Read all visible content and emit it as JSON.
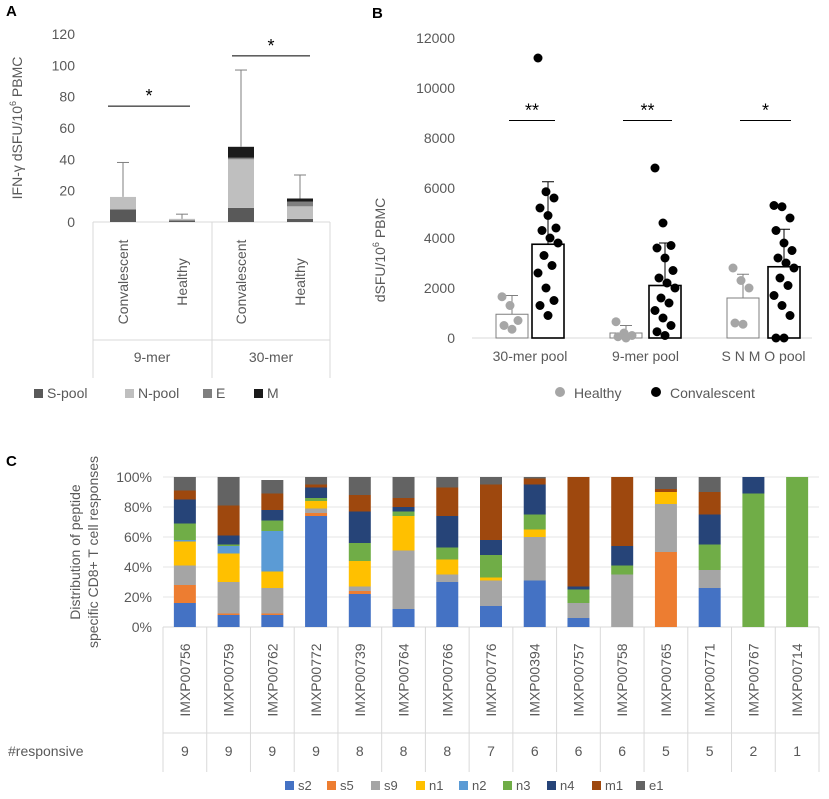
{
  "panels": {
    "A": {
      "label": "A",
      "ylabel_prefix": "IFN-γ dSFU/10",
      "ylabel_sup": "6",
      "ylabel_suffix": " PBMC",
      "groups": [
        "9-mer",
        "30-mer"
      ],
      "legend": [
        "S-pool",
        "N-pool",
        "E",
        "M"
      ]
    },
    "B": {
      "label": "B",
      "ylabel_prefix": "dSFU/10",
      "ylabel_sup": "6",
      "ylabel_suffix": " PBMC",
      "legend": [
        "Healthy",
        "Convalescent"
      ]
    },
    "C": {
      "label": "C",
      "ylabel_line1": "Distribution of peptide",
      "ylabel_line2": "specific CD8+ T cell responses",
      "responsive_label": "#responsive",
      "legend": [
        "s2",
        "s5",
        "s9",
        "n1",
        "n2",
        "n3",
        "n4",
        "m1",
        "e1"
      ]
    }
  },
  "colors": {
    "S-pool": "#595959",
    "N-pool": "#bfbfbf",
    "E": "#7f7f7f",
    "M": "#1a1a1a",
    "healthy": "#a6a6a6",
    "convalescent": "#000000",
    "s2": "#4472c4",
    "s5": "#ed7d31",
    "s9": "#a5a5a5",
    "n1": "#ffc000",
    "n2": "#5b9bd5",
    "n3": "#70ad47",
    "n4": "#264478",
    "m1": "#9e480e",
    "e1": "#636363"
  },
  "chart_data": [
    {
      "panel": "A",
      "type": "bar",
      "stacked": true,
      "ylim": [
        0,
        120
      ],
      "yticks": [
        0,
        20,
        40,
        60,
        80,
        100,
        120
      ],
      "categories": [
        "Convalescent",
        "Healthy",
        "Convalescent",
        "Healthy"
      ],
      "category_groups": [
        "9-mer",
        "9-mer",
        "30-mer",
        "30-mer"
      ],
      "series": [
        {
          "name": "S-pool",
          "values": [
            8,
            1,
            9,
            2
          ]
        },
        {
          "name": "N-pool",
          "values": [
            8,
            1,
            31,
            8
          ]
        },
        {
          "name": "E",
          "values": [
            0,
            0,
            1,
            3
          ]
        },
        {
          "name": "M",
          "values": [
            0,
            0,
            7,
            2
          ]
        }
      ],
      "error_upper": [
        38,
        5,
        97,
        30
      ],
      "significance": [
        {
          "between": [
            "9-mer Convalescent",
            "9-mer Healthy"
          ],
          "label": "*",
          "y": 74
        },
        {
          "between": [
            "30-mer Convalescent",
            "30-mer Healthy"
          ],
          "label": "*",
          "y": 106
        }
      ]
    },
    {
      "panel": "B",
      "type": "bar",
      "ylim": [
        0,
        12000
      ],
      "yticks": [
        0,
        2000,
        4000,
        6000,
        8000,
        10000,
        12000
      ],
      "categories": [
        "30-mer pool",
        "9-mer pool",
        "S N M O pool"
      ],
      "series": [
        {
          "name": "Healthy",
          "values": [
            950,
            200,
            1600
          ],
          "error_upper": [
            1700,
            500,
            2550
          ],
          "points": [
            [
              1650,
              1300,
              700,
              500,
              350
            ],
            [
              650,
              200,
              100,
              50,
              0
            ],
            [
              2800,
              2300,
              2000,
              600,
              550
            ]
          ]
        },
        {
          "name": "Convalescent",
          "values": [
            3750,
            2100,
            2850
          ],
          "error_upper": [
            6250,
            3800,
            4350
          ],
          "points": [
            [
              11200,
              5850,
              5600,
              5200,
              4900,
              4400,
              4300,
              4000,
              3800,
              3300,
              2900,
              2600,
              2000,
              1500,
              1300,
              900
            ],
            [
              6800,
              4600,
              3700,
              3600,
              3200,
              2700,
              2400,
              2200,
              2000,
              1600,
              1400,
              1100,
              800,
              500,
              250,
              100
            ],
            [
              5300,
              5250,
              4800,
              4300,
              3800,
              3500,
              3200,
              3000,
              2800,
              2400,
              2100,
              1700,
              1300,
              900,
              0,
              0
            ]
          ]
        }
      ],
      "significance": [
        {
          "category": "30-mer pool",
          "label": "**",
          "y": 8700
        },
        {
          "category": "9-mer pool",
          "label": "**",
          "y": 8700
        },
        {
          "category": "S N M O pool",
          "label": "*",
          "y": 8700
        }
      ]
    },
    {
      "panel": "C",
      "type": "bar",
      "stacked": true,
      "percent": true,
      "ylim": [
        0,
        100
      ],
      "yticks": [
        "0%",
        "20%",
        "40%",
        "60%",
        "80%",
        "100%"
      ],
      "categories": [
        "IMXP00756",
        "IMXP00759",
        "IMXP00762",
        "IMXP00772",
        "IMXP00739",
        "IMXP00764",
        "IMXP00766",
        "IMXP00776",
        "IMXP00394",
        "IMXP00757",
        "IMXP00758",
        "IMXP00765",
        "IMXP00771",
        "IMXP00767",
        "IMXP00714"
      ],
      "responsive": [
        9,
        9,
        9,
        9,
        8,
        8,
        8,
        7,
        6,
        6,
        6,
        5,
        5,
        2,
        1
      ],
      "series": [
        {
          "name": "s2",
          "values": [
            16,
            8,
            8,
            74,
            22,
            12,
            30,
            14,
            31,
            6,
            0,
            0,
            26,
            0,
            0
          ]
        },
        {
          "name": "s5",
          "values": [
            12,
            1,
            1,
            2,
            2,
            0,
            0,
            0,
            0,
            0,
            0,
            50,
            0,
            0,
            0
          ]
        },
        {
          "name": "s9",
          "values": [
            13,
            21,
            17,
            3,
            3,
            39,
            5,
            17,
            29,
            10,
            35,
            32,
            12,
            0,
            0
          ]
        },
        {
          "name": "n1",
          "values": [
            16,
            19,
            11,
            5,
            17,
            23,
            10,
            2,
            5,
            0,
            0,
            8,
            0,
            0,
            0
          ]
        },
        {
          "name": "n2",
          "values": [
            1,
            5,
            27,
            0,
            0,
            0,
            0,
            0,
            0,
            0,
            0,
            0,
            0,
            0,
            0
          ]
        },
        {
          "name": "n3",
          "values": [
            11,
            1,
            7,
            2,
            12,
            3,
            8,
            15,
            10,
            9,
            6,
            0,
            17,
            89,
            100
          ]
        },
        {
          "name": "n4",
          "values": [
            16,
            6,
            7,
            7,
            21,
            3,
            21,
            10,
            20,
            2,
            13,
            0,
            20,
            11,
            0
          ]
        },
        {
          "name": "m1",
          "values": [
            6,
            20,
            11,
            2,
            11,
            6,
            19,
            37,
            4,
            73,
            46,
            2,
            15,
            0,
            0
          ]
        },
        {
          "name": "e1",
          "values": [
            9,
            19,
            9,
            5,
            12,
            14,
            7,
            5,
            1,
            0,
            0,
            8,
            10,
            0,
            0
          ]
        }
      ]
    }
  ]
}
